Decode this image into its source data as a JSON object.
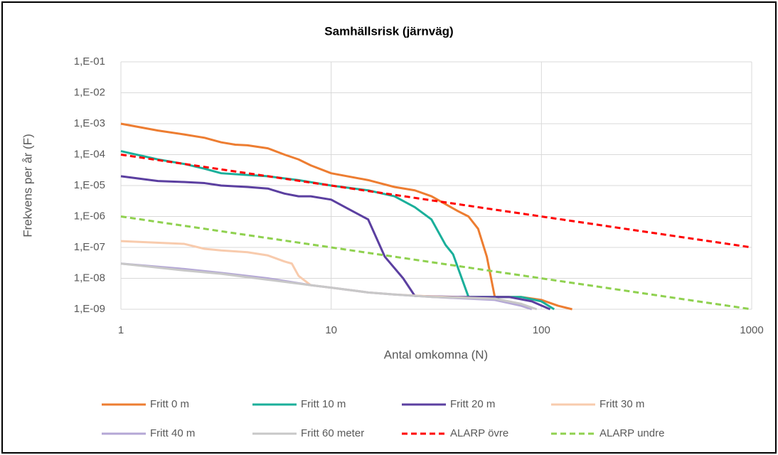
{
  "chart_data": {
    "type": "line",
    "title": "Samhällsrisk (järnväg)",
    "x_label": "Antal omkomna (N)",
    "y_label": "Frekvens per år (F)",
    "xlog": true,
    "ylog": true,
    "grid": true,
    "legend": "bottom",
    "xlim": [
      1,
      1000
    ],
    "xticks": [
      1,
      10,
      100,
      1000
    ],
    "ylim": [
      1e-09,
      0.1
    ],
    "yticks": [
      {
        "value": 1e-09,
        "label": "1,E-09"
      },
      {
        "value": 1e-08,
        "label": "1,E-08"
      },
      {
        "value": 1e-07,
        "label": "1,E-07"
      },
      {
        "value": 1e-06,
        "label": "1,E-06"
      },
      {
        "value": 1e-05,
        "label": "1,E-05"
      },
      {
        "value": 0.0001,
        "label": "1,E-04"
      },
      {
        "value": 0.001,
        "label": "1,E-03"
      },
      {
        "value": 0.01,
        "label": "1,E-02"
      },
      {
        "value": 0.1,
        "label": "1,E-01"
      }
    ],
    "series": [
      {
        "name": "Fritt 0 m",
        "color": "#ED7D31",
        "dash": false,
        "x": [
          1,
          1.5,
          2,
          2.5,
          3,
          3.5,
          4,
          5,
          6,
          7,
          8,
          10,
          15,
          20,
          25,
          30,
          35,
          40,
          45,
          50,
          55,
          60,
          80,
          100,
          120,
          140
        ],
        "values": [
          0.001,
          0.0006,
          0.00045,
          0.00035,
          0.00025,
          0.00021,
          0.0002,
          0.00016,
          0.0001,
          7e-05,
          4.5e-05,
          2.5e-05,
          1.5e-05,
          9e-06,
          7e-06,
          4.5e-06,
          2.5e-06,
          1.5e-06,
          1e-06,
          4e-07,
          5e-08,
          2.5e-09,
          2.5e-09,
          2e-09,
          1.3e-09,
          1e-09
        ]
      },
      {
        "name": "Fritt 10 m",
        "color": "#1AAF9A",
        "dash": false,
        "x": [
          1,
          1.5,
          2,
          2.5,
          3,
          4,
          5,
          7,
          10,
          15,
          20,
          25,
          30,
          35,
          38,
          45,
          80,
          100,
          115
        ],
        "values": [
          0.00013,
          7e-05,
          5e-05,
          3.5e-05,
          2.5e-05,
          2.2e-05,
          2e-05,
          1.5e-05,
          1e-05,
          7e-06,
          4.5e-06,
          2e-06,
          8e-07,
          1.2e-07,
          6e-08,
          2.5e-09,
          2.5e-09,
          1.8e-09,
          1e-09
        ]
      },
      {
        "name": "Fritt 20 m",
        "color": "#5B3FA0",
        "dash": false,
        "x": [
          1,
          1.5,
          2,
          2.5,
          3,
          4,
          5,
          6,
          7,
          8,
          10,
          12,
          15,
          18,
          22,
          25,
          40,
          70,
          90,
          110
        ],
        "values": [
          2e-05,
          1.4e-05,
          1.3e-05,
          1.2e-05,
          1e-05,
          9e-06,
          8e-06,
          5.5e-06,
          4.5e-06,
          4.5e-06,
          3.5e-06,
          1.8e-06,
          8e-07,
          5e-08,
          1e-08,
          2.7e-09,
          2.5e-09,
          2.5e-09,
          1.8e-09,
          1e-09
        ]
      },
      {
        "name": "Fritt 30 m",
        "color": "#F8CBAD",
        "dash": false,
        "x": [
          1,
          2,
          2.5,
          3,
          4,
          5,
          6,
          6.5,
          7,
          8,
          10,
          15,
          20,
          30,
          60,
          80,
          90
        ],
        "values": [
          1.6e-07,
          1.3e-07,
          9e-08,
          8e-08,
          7e-08,
          5.5e-08,
          3.5e-08,
          3e-08,
          1.2e-08,
          6e-09,
          5e-09,
          3.5e-09,
          3e-09,
          2.6e-09,
          2.2e-09,
          1.5e-09,
          1e-09
        ]
      },
      {
        "name": "Fritt 40 m",
        "color": "#B4A7D6",
        "dash": false,
        "x": [
          1,
          2,
          3,
          5,
          8,
          10,
          15,
          20,
          30,
          60,
          80,
          90
        ],
        "values": [
          3e-08,
          2e-08,
          1.5e-08,
          1e-08,
          6e-09,
          5e-09,
          3.5e-09,
          3e-09,
          2.5e-09,
          2e-09,
          1.3e-09,
          1e-09
        ]
      },
      {
        "name": "Fritt 60 meter",
        "color": "#C8C8C8",
        "dash": false,
        "x": [
          1,
          2,
          3,
          5,
          8,
          10,
          15,
          20,
          30,
          60,
          80,
          95
        ],
        "values": [
          3e-08,
          1.8e-08,
          1.4e-08,
          9e-09,
          6e-09,
          5e-09,
          3.5e-09,
          3e-09,
          2.5e-09,
          2.2e-09,
          1.5e-09,
          1e-09
        ]
      },
      {
        "name": "ALARP övre",
        "color": "#FF0000",
        "dash": true,
        "x": [
          1,
          1000
        ],
        "values": [
          0.0001,
          1e-07
        ]
      },
      {
        "name": "ALARP undre",
        "color": "#8FD14F",
        "dash": true,
        "x": [
          1,
          1000
        ],
        "values": [
          1e-06,
          1e-09
        ]
      }
    ]
  }
}
